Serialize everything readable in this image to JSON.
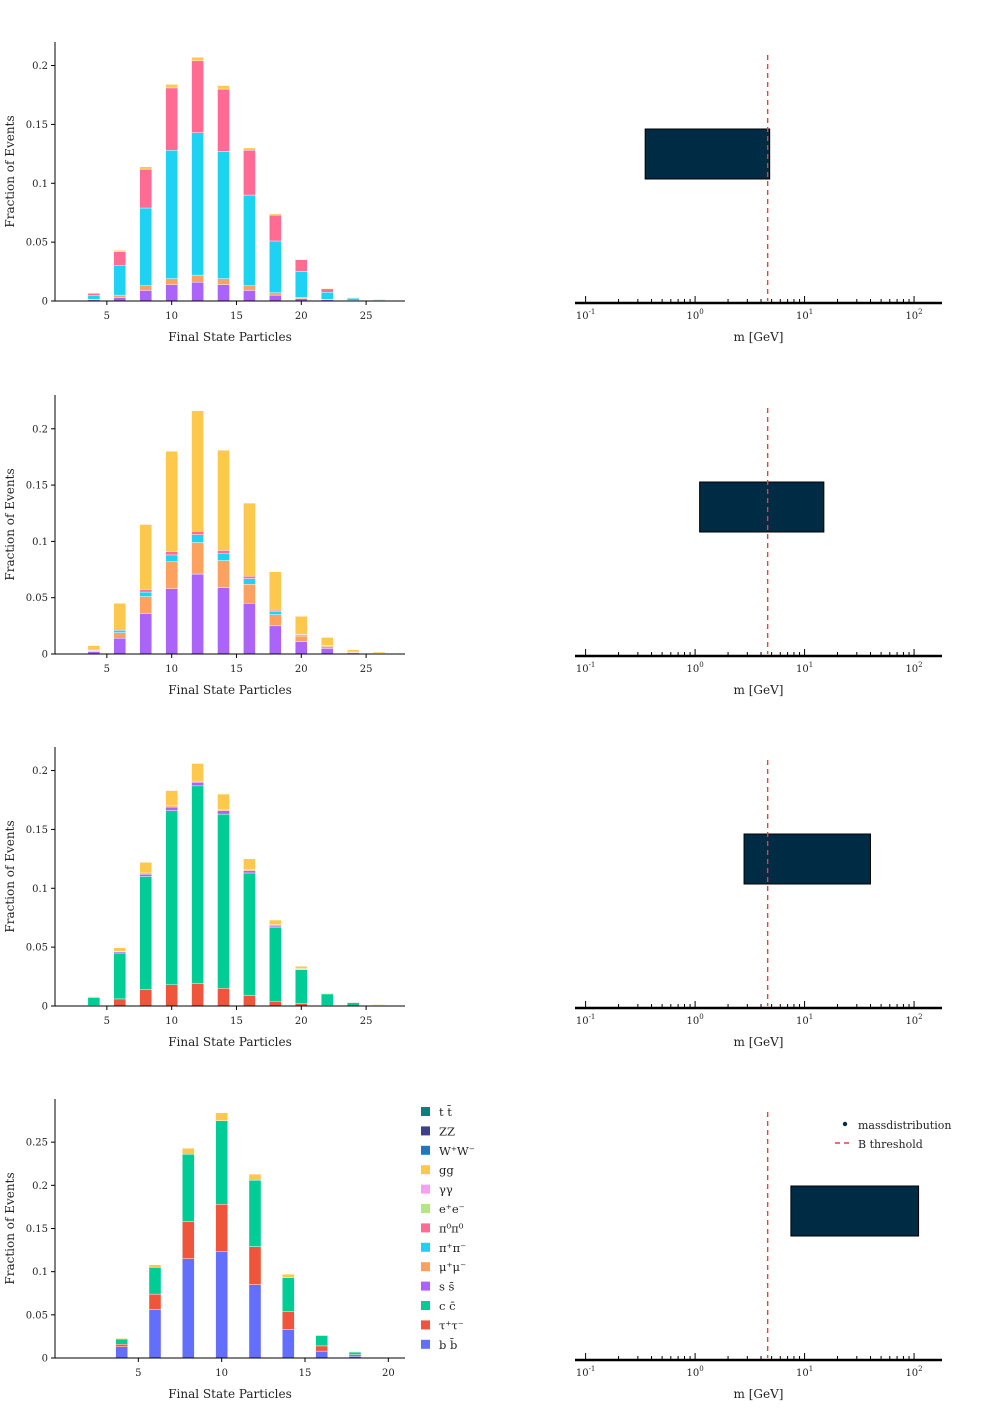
{
  "colors": {
    "tt": "#0a7f7f",
    "ZZ": "#3b3f8f",
    "WW": "#1f77c4",
    "gg": "#fec84d",
    "yy": "#f8a0f0",
    "ee": "#b5e48c",
    "pi0pi0": "#ff6b93",
    "pipi": "#1ed2f4",
    "mumu": "#fda15e",
    "ss": "#ab63fa",
    "cc": "#00cc96",
    "tautau": "#ef553b",
    "bb": "#636efa",
    "box": "#002b45",
    "threshold": "#e8413c",
    "axis": "#000000"
  },
  "legend": {
    "species": [
      {
        "key": "tt",
        "label": "t t̄"
      },
      {
        "key": "ZZ",
        "label": "ZZ"
      },
      {
        "key": "WW",
        "label": "W⁺W⁻"
      },
      {
        "key": "gg",
        "label": "gg"
      },
      {
        "key": "yy",
        "label": "γγ"
      },
      {
        "key": "ee",
        "label": "e⁺e⁻"
      },
      {
        "key": "pi0pi0",
        "label": "π⁰π⁰"
      },
      {
        "key": "pipi",
        "label": "π⁺π⁻"
      },
      {
        "key": "mumu",
        "label": "μ⁺μ⁻"
      },
      {
        "key": "ss",
        "label": "s s̄"
      },
      {
        "key": "cc",
        "label": "c c̄"
      },
      {
        "key": "tautau",
        "label": "τ⁺τ⁻"
      },
      {
        "key": "bb",
        "label": "b b̄"
      }
    ],
    "mass": [
      {
        "key": "massdistribution",
        "label": "massdistribution"
      },
      {
        "key": "threshold",
        "label": "B threshold"
      }
    ]
  },
  "chart_data": [
    {
      "type": "bar",
      "stacked": true,
      "xlabel": "Final State Particles",
      "ylabel": "Fraction of Events",
      "xlim": [
        1,
        28
      ],
      "ylim": [
        0,
        0.22
      ],
      "xticks": [
        5,
        10,
        15,
        20,
        25
      ],
      "yticks": [
        0,
        0.05,
        0.1,
        0.15,
        0.2
      ],
      "x": [
        4,
        6,
        8,
        10,
        12,
        14,
        16,
        18,
        20,
        22,
        24,
        26
      ],
      "series": [
        {
          "key": "ss",
          "values": [
            0.001,
            0.003,
            0.009,
            0.014,
            0.016,
            0.014,
            0.009,
            0.005,
            0.002,
            0.001,
            0.0003,
            0.0001
          ]
        },
        {
          "key": "mumu",
          "values": [
            0.0005,
            0.002,
            0.004,
            0.005,
            0.006,
            0.005,
            0.004,
            0.002,
            0.001,
            0.0005,
            0.0002,
            0.0001
          ]
        },
        {
          "key": "pipi",
          "values": [
            0.003,
            0.025,
            0.066,
            0.109,
            0.121,
            0.108,
            0.077,
            0.044,
            0.022,
            0.006,
            0.002,
            0.001
          ]
        },
        {
          "key": "pi0pi0",
          "values": [
            0.002,
            0.012,
            0.033,
            0.053,
            0.061,
            0.053,
            0.038,
            0.022,
            0.01,
            0.003,
            0.0004,
            0.0001
          ]
        },
        {
          "key": "gg",
          "values": [
            0.0005,
            0.001,
            0.002,
            0.003,
            0.003,
            0.003,
            0.002,
            0.001,
            0.0005,
            0.0003,
            0.0001,
            0.0001
          ]
        }
      ],
      "mass": {
        "xlabel": "m [GeV]",
        "xscale": "log",
        "xlim": [
          0.08,
          180
        ],
        "box": [
          0.35,
          4.8
        ],
        "threshold": 4.6
      }
    },
    {
      "type": "bar",
      "stacked": true,
      "xlabel": "Final State Particles",
      "ylabel": "Fraction of Events",
      "xlim": [
        1,
        28
      ],
      "ylim": [
        0,
        0.23
      ],
      "xticks": [
        5,
        10,
        15,
        20,
        25
      ],
      "yticks": [
        0,
        0.05,
        0.1,
        0.15,
        0.2
      ],
      "x": [
        4,
        6,
        8,
        10,
        12,
        14,
        16,
        18,
        20,
        22,
        24,
        26
      ],
      "series": [
        {
          "key": "ss",
          "values": [
            0.002,
            0.014,
            0.036,
            0.058,
            0.071,
            0.059,
            0.045,
            0.025,
            0.011,
            0.005,
            0.001,
            0.0003
          ]
        },
        {
          "key": "mumu",
          "values": [
            0.001,
            0.005,
            0.015,
            0.024,
            0.028,
            0.024,
            0.017,
            0.01,
            0.005,
            0.002,
            0.0005,
            0.0002
          ]
        },
        {
          "key": "pipi",
          "values": [
            0.0003,
            0.002,
            0.004,
            0.006,
            0.007,
            0.006,
            0.005,
            0.003,
            0.001,
            0.0005,
            0.0002,
            0.0001
          ]
        },
        {
          "key": "pi0pi0",
          "values": [
            0.0002,
            0.001,
            0.002,
            0.003,
            0.003,
            0.003,
            0.002,
            0.001,
            0.0005,
            0.0002,
            0.0001,
            0.0001
          ]
        },
        {
          "key": "gg",
          "values": [
            0.004,
            0.023,
            0.058,
            0.089,
            0.107,
            0.089,
            0.065,
            0.034,
            0.016,
            0.007,
            0.002,
            0.001
          ]
        }
      ],
      "mass": {
        "xlabel": "m [GeV]",
        "xscale": "log",
        "xlim": [
          0.08,
          180
        ],
        "box": [
          1.1,
          15
        ],
        "threshold": 4.6
      }
    },
    {
      "type": "bar",
      "stacked": true,
      "xlabel": "Final State Particles",
      "ylabel": "Fraction of Events",
      "xlim": [
        1,
        28
      ],
      "ylim": [
        0,
        0.22
      ],
      "xticks": [
        5,
        10,
        15,
        20,
        25
      ],
      "yticks": [
        0,
        0.05,
        0.1,
        0.15,
        0.2
      ],
      "x": [
        4,
        6,
        8,
        10,
        12,
        14,
        16,
        18,
        20,
        22,
        24,
        26
      ],
      "series": [
        {
          "key": "tautau",
          "values": [
            0.0005,
            0.006,
            0.014,
            0.018,
            0.019,
            0.015,
            0.009,
            0.004,
            0.002,
            0.0005,
            0.0002,
            0.0001
          ]
        },
        {
          "key": "cc",
          "values": [
            0.007,
            0.039,
            0.096,
            0.148,
            0.168,
            0.148,
            0.104,
            0.063,
            0.029,
            0.01,
            0.003,
            0.001
          ]
        },
        {
          "key": "ss",
          "values": [
            0.0002,
            0.001,
            0.002,
            0.003,
            0.003,
            0.003,
            0.002,
            0.001,
            0.0005,
            0.0002,
            0.0001,
            0.0001
          ]
        },
        {
          "key": "mumu",
          "values": [
            0.0001,
            0.0005,
            0.001,
            0.001,
            0.001,
            0.001,
            0.001,
            0.001,
            0.0003,
            0.0001,
            0,
            0
          ]
        },
        {
          "key": "gg",
          "values": [
            0.0005,
            0.003,
            0.009,
            0.013,
            0.015,
            0.013,
            0.009,
            0.004,
            0.002,
            0.0005,
            0.0002,
            0.0001
          ]
        }
      ],
      "mass": {
        "xlabel": "m [GeV]",
        "xscale": "log",
        "xlim": [
          0.08,
          180
        ],
        "box": [
          2.8,
          40
        ],
        "threshold": 4.6
      }
    },
    {
      "type": "bar",
      "stacked": true,
      "xlabel": "Final State Particles",
      "ylabel": "Fraction of Events",
      "xlim": [
        0,
        21
      ],
      "ylim": [
        0,
        0.3
      ],
      "xticks": [
        5,
        10,
        15,
        20
      ],
      "yticks": [
        0,
        0.05,
        0.1,
        0.15,
        0.2,
        0.25
      ],
      "x": [
        4,
        6,
        8,
        10,
        12,
        14,
        16,
        18
      ],
      "series": [
        {
          "key": "bb",
          "values": [
            0.013,
            0.056,
            0.115,
            0.123,
            0.085,
            0.033,
            0.008,
            0.002
          ]
        },
        {
          "key": "tautau",
          "values": [
            0.003,
            0.018,
            0.043,
            0.055,
            0.044,
            0.021,
            0.006,
            0.002
          ]
        },
        {
          "key": "cc",
          "values": [
            0.006,
            0.031,
            0.078,
            0.097,
            0.077,
            0.039,
            0.012,
            0.003
          ]
        },
        {
          "key": "gg",
          "values": [
            0.001,
            0.003,
            0.007,
            0.009,
            0.007,
            0.004,
            0.001,
            0.0005
          ]
        }
      ],
      "mass": {
        "xlabel": "m [GeV]",
        "xscale": "log",
        "xlim": [
          0.08,
          180
        ],
        "box": [
          7.5,
          110
        ],
        "threshold": 4.6
      }
    }
  ]
}
